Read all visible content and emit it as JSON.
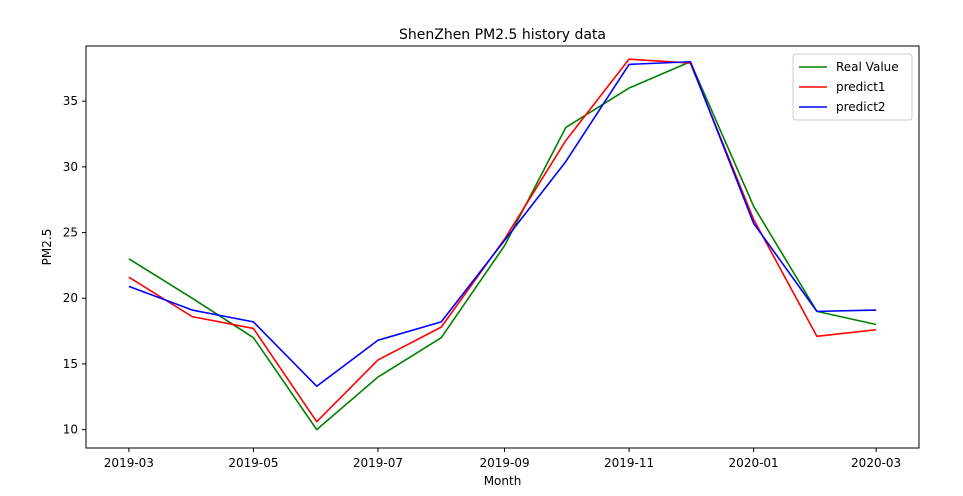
{
  "chart_data": {
    "type": "line",
    "title": "ShenZhen PM2.5 history data",
    "xlabel": "Month",
    "ylabel": "PM2.5",
    "x": [
      "2019-03-01",
      "2019-04-01",
      "2019-05-01",
      "2019-06-01",
      "2019-07-01",
      "2019-08-01",
      "2019-09-01",
      "2019-10-01",
      "2019-11-01",
      "2019-12-01",
      "2020-01-01",
      "2020-02-01",
      "2020-03-01"
    ],
    "x_ticks": [
      "2019-03",
      "2019-05",
      "2019-07",
      "2019-09",
      "2019-11",
      "2020-01",
      "2020-03"
    ],
    "y_ticks": [
      10,
      15,
      20,
      25,
      30,
      35
    ],
    "xlim": [
      "2019-02-08",
      "2020-03-22"
    ],
    "ylim": [
      8.6,
      39.2
    ],
    "grid": false,
    "legend_position": "top-right",
    "series": [
      {
        "name": "Real Value",
        "color": "#008000",
        "values": [
          23,
          20,
          17,
          10,
          14,
          17,
          24,
          33,
          36,
          38,
          27,
          19,
          18
        ]
      },
      {
        "name": "predict1",
        "color": "#ff0000",
        "values": [
          21.6,
          18.6,
          17.7,
          10.6,
          15.3,
          17.8,
          24.5,
          32.0,
          38.2,
          37.9,
          26.0,
          17.1,
          17.6
        ]
      },
      {
        "name": "predict2",
        "color": "#0000ff",
        "values": [
          20.9,
          19.1,
          18.2,
          13.3,
          16.8,
          18.2,
          24.4,
          30.4,
          37.8,
          38.0,
          25.7,
          19.0,
          19.1
        ]
      }
    ]
  }
}
